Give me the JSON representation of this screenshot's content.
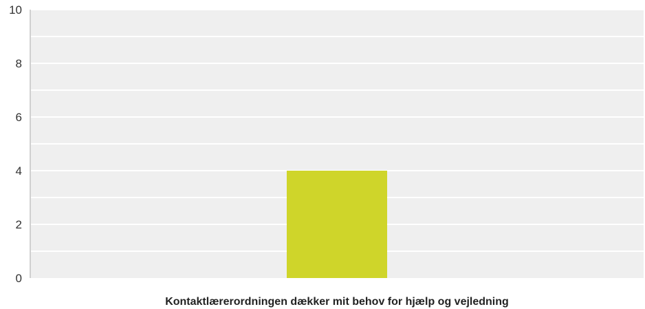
{
  "chart_data": {
    "type": "bar",
    "categories": [
      "Kontaktlærerordningen dækker mit behov for hjælp og vejledning"
    ],
    "series": [
      {
        "values": [
          4
        ],
        "color": "#cfd52a"
      }
    ],
    "ylim": [
      0,
      10
    ],
    "yticks": [
      0,
      2,
      4,
      6,
      8,
      10
    ],
    "grid": true,
    "legend": "none",
    "colors": {
      "plot_background": "#efefef",
      "gridline": "#ffffff",
      "axis": "#cccccc"
    }
  }
}
